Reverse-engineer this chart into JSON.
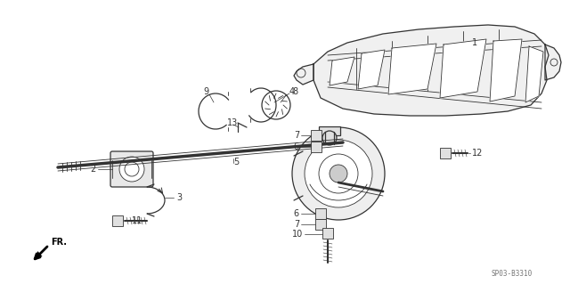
{
  "bg_color": "#ffffff",
  "line_color": "#333333",
  "watermark": "SP03-B3310",
  "figsize": [
    6.4,
    3.19
  ],
  "dpi": 100
}
